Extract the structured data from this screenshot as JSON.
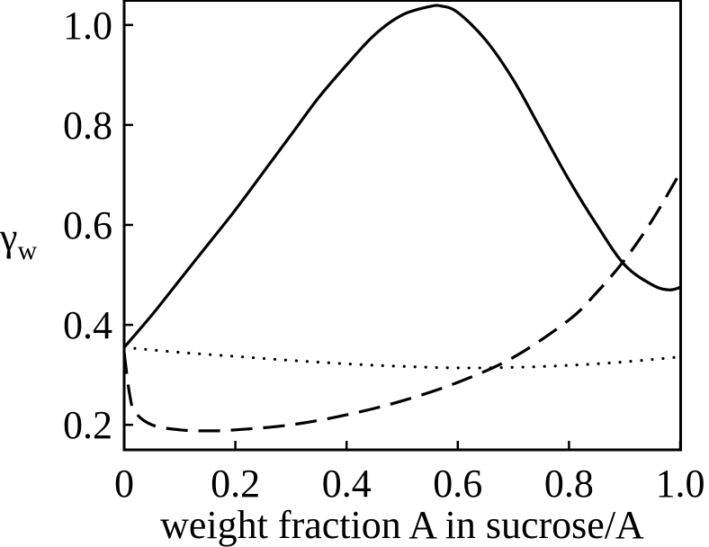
{
  "chart_data": {
    "type": "line",
    "title": "",
    "xlabel": "weight fraction A in sucrose/A",
    "ylabel": "γ",
    "ylabel_subscript": "w",
    "xlim": [
      0,
      1
    ],
    "ylim": [
      0.15,
      1.05
    ],
    "xticks": [
      0,
      0.2,
      0.4,
      0.6,
      0.8,
      1.0
    ],
    "xtick_labels": [
      "0",
      "0.2",
      "0.4",
      "0.6",
      "0.8",
      "1.0"
    ],
    "yticks": [
      0.2,
      0.4,
      0.6,
      0.8,
      1.0
    ],
    "ytick_labels": [
      "0.2",
      "0.4",
      "0.6",
      "0.8",
      "1.0"
    ],
    "grid": false,
    "series": [
      {
        "name": "solid",
        "style": "solid",
        "x": [
          0,
          0.05,
          0.1,
          0.15,
          0.2,
          0.25,
          0.3,
          0.35,
          0.4,
          0.45,
          0.5,
          0.55,
          0.57,
          0.6,
          0.65,
          0.7,
          0.75,
          0.8,
          0.85,
          0.9,
          0.95,
          0.98,
          1.0
        ],
        "y": [
          0.355,
          0.42,
          0.49,
          0.56,
          0.63,
          0.705,
          0.78,
          0.855,
          0.92,
          0.98,
          1.02,
          1.037,
          1.038,
          1.025,
          0.97,
          0.89,
          0.79,
          0.69,
          0.6,
          0.52,
          0.48,
          0.47,
          0.475
        ]
      },
      {
        "name": "dashed",
        "style": "dashed",
        "x": [
          0,
          0.01,
          0.02,
          0.05,
          0.1,
          0.15,
          0.2,
          0.3,
          0.4,
          0.5,
          0.6,
          0.7,
          0.8,
          0.85,
          0.9,
          0.95,
          1.0
        ],
        "y": [
          0.345,
          0.26,
          0.225,
          0.2,
          0.19,
          0.188,
          0.19,
          0.2,
          0.22,
          0.248,
          0.285,
          0.335,
          0.41,
          0.465,
          0.53,
          0.61,
          0.705
        ]
      },
      {
        "name": "dotted",
        "style": "dotted",
        "x": [
          0,
          0.1,
          0.2,
          0.3,
          0.4,
          0.5,
          0.6,
          0.7,
          0.8,
          0.9,
          1.0
        ],
        "y": [
          0.355,
          0.345,
          0.337,
          0.329,
          0.322,
          0.317,
          0.314,
          0.315,
          0.319,
          0.326,
          0.336
        ]
      }
    ]
  }
}
